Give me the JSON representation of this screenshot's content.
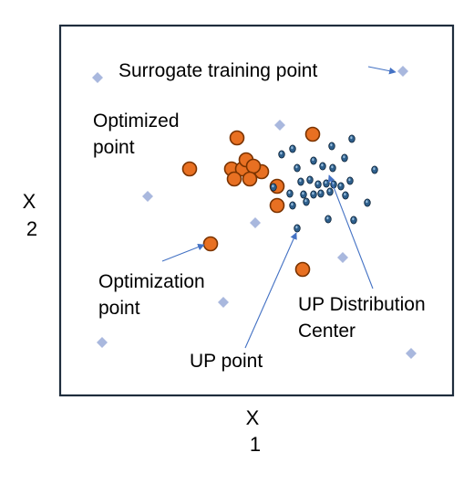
{
  "axes": {
    "x_label": [
      "X",
      "1"
    ],
    "y_label": [
      "X",
      "2"
    ]
  },
  "annotations": {
    "surrogate_training_point": "Surrogate training point",
    "optimized_point": [
      "Optimized",
      "point"
    ],
    "optimization_point": [
      "Optimization",
      "point"
    ],
    "up_point": "UP point",
    "up_distribution_center": [
      "UP Distribution",
      "Center"
    ]
  },
  "colors": {
    "frame": "#1f2d3d",
    "surrogate_marker": "#a9b8de",
    "optimized_fill": "#e87022",
    "optimized_edge": "#7a3300",
    "up_fill": "#2e5f8c",
    "up_edge": "#0d2236",
    "up_highlight": "#9bc0df",
    "arrow": "#4472c4"
  },
  "legend_markers": {
    "surrogate_training_point": "diamond-marker",
    "optimized_point": "orange-circle-marker",
    "up_point": "blue-ellipse-marker"
  }
}
